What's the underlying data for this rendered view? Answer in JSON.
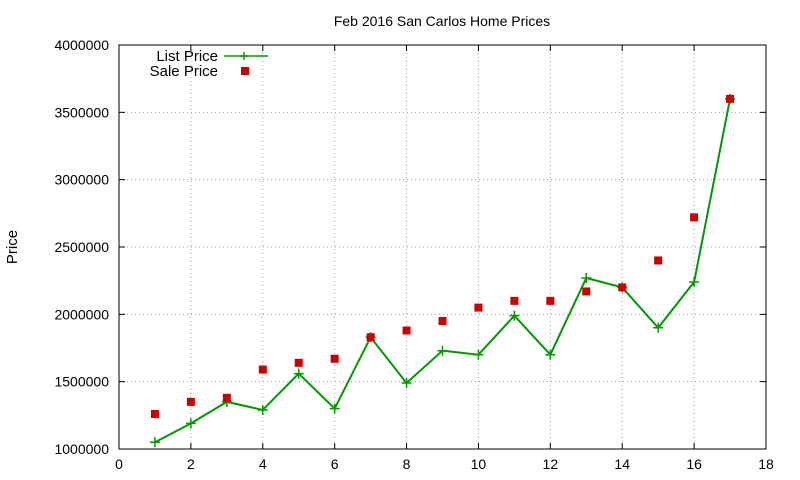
{
  "chart_data": {
    "type": "line",
    "title": "Feb 2016 San Carlos Home Prices",
    "xlabel": "",
    "ylabel": "Price",
    "xlim": [
      0,
      18
    ],
    "ylim": [
      1000000,
      4000000
    ],
    "x_ticks": [
      0,
      2,
      4,
      6,
      8,
      10,
      12,
      14,
      16,
      18
    ],
    "y_ticks": [
      1000000,
      1500000,
      2000000,
      2500000,
      3000000,
      3500000,
      4000000
    ],
    "grid": true,
    "legend_position": "top-left",
    "series": [
      {
        "name": "List Price",
        "style": "line-with-plus-markers",
        "color": "#009900",
        "x": [
          1,
          2,
          3,
          4,
          5,
          6,
          7,
          8,
          9,
          10,
          11,
          12,
          13,
          14,
          15,
          16,
          17
        ],
        "values": [
          1050000,
          1190000,
          1350000,
          1290000,
          1560000,
          1300000,
          1830000,
          1490000,
          1730000,
          1700000,
          1990000,
          1700000,
          2270000,
          2200000,
          1900000,
          2240000,
          3600000
        ]
      },
      {
        "name": "Sale Price",
        "style": "square-markers",
        "color": "#cc0000",
        "x": [
          1,
          2,
          3,
          4,
          5,
          6,
          7,
          8,
          9,
          10,
          11,
          12,
          13,
          14,
          15,
          16,
          17
        ],
        "values": [
          1260000,
          1350000,
          1380000,
          1590000,
          1640000,
          1670000,
          1830000,
          1880000,
          1950000,
          2050000,
          2100000,
          2100000,
          2170000,
          2200000,
          2400000,
          2720000,
          3600000
        ]
      }
    ]
  }
}
